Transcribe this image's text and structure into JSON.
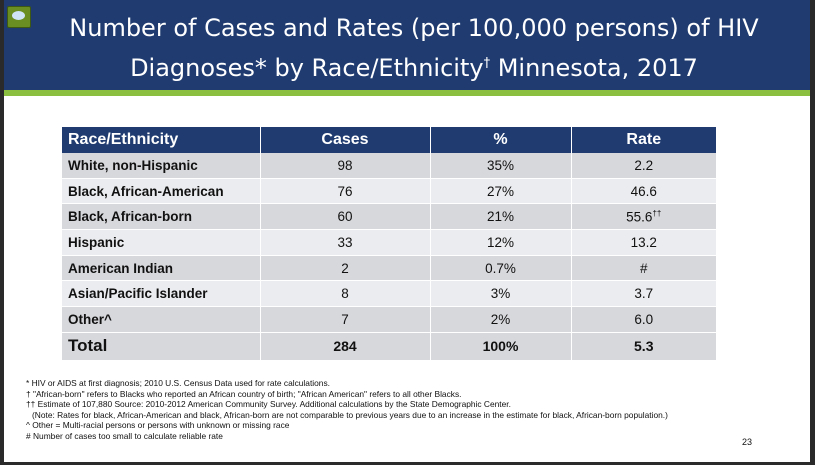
{
  "slide": {
    "title_line1": "Number of Cases and Rates (per 100,000 persons) of HIV",
    "title_line2_pre": "Diagnoses* by Race/Ethnicity",
    "title_line2_sup": "†",
    "title_line2_post": " Minnesota, 2017",
    "page_number": "23"
  },
  "table": {
    "headers": [
      "Race/Ethnicity",
      "Cases",
      "%",
      "Rate"
    ],
    "rows": [
      {
        "group": "White, non-Hispanic",
        "cases": "98",
        "pct": "35%",
        "rate": "2.2"
      },
      {
        "group": "Black, African-American",
        "cases": "76",
        "pct": "27%",
        "rate": "46.6"
      },
      {
        "group": "Black, African-born",
        "cases": "60",
        "pct": "21%",
        "rate": "55.6",
        "rate_sup": "††"
      },
      {
        "group": "Hispanic",
        "cases": "33",
        "pct": "12%",
        "rate": "13.2"
      },
      {
        "group": "American Indian",
        "cases": "2",
        "pct": "0.7%",
        "rate": "#"
      },
      {
        "group": "Asian/Pacific Islander",
        "cases": "8",
        "pct": "3%",
        "rate": "3.7"
      },
      {
        "group": "Other^",
        "cases": "7",
        "pct": "2%",
        "rate": "6.0"
      }
    ],
    "total": {
      "group": "Total",
      "cases": "284",
      "pct": "100%",
      "rate": "5.3"
    }
  },
  "footnotes": {
    "n1": "* HIV or AIDS at first diagnosis; 2010 U.S. Census Data used for rate calculations.",
    "n2": "† \"African-born\" refers to Blacks who reported an African country of birth; \"African American\" refers to all other Blacks.",
    "n3": "†† Estimate of 107,880  Source:  2010-2012 American Community Survey. Additional calculations by the State Demographic Center.",
    "n4": "(Note: Rates for black, African-American and black, African-born are not comparable to previous years due to an increase in the estimate for black, African-born population.)",
    "n5": "^ Other = Multi-racial persons or persons with unknown or missing race",
    "n6": "# Number of cases too small to calculate reliable rate"
  },
  "colors": {
    "header_navy": "#1f3b70",
    "accent_green": "#8bbf3f",
    "row_dark": "#d7d8dc",
    "row_light": "#ebecef"
  }
}
